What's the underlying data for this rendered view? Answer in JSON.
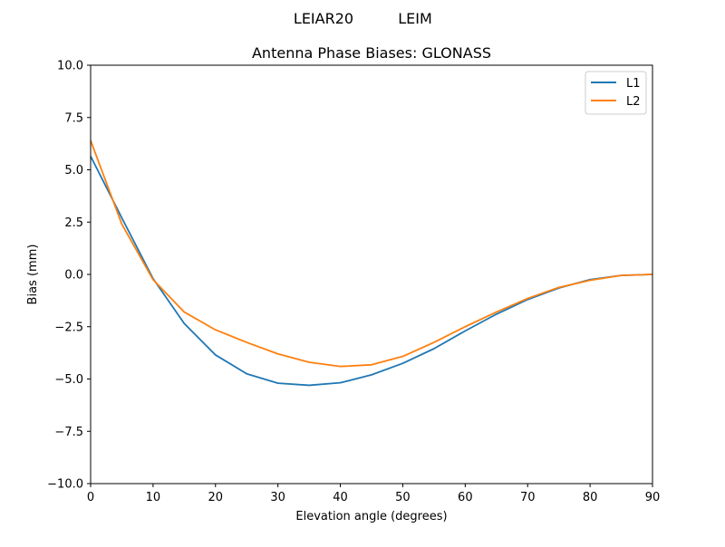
{
  "figure": {
    "suptitle_left": "LEIAR20",
    "suptitle_right": "LEIM"
  },
  "chart_data": {
    "type": "line",
    "title": "Antenna Phase Biases: GLONASS",
    "xlabel": "Elevation angle (degrees)",
    "ylabel": "Bias (mm)",
    "xlim": [
      0,
      90
    ],
    "ylim": [
      -10,
      10
    ],
    "xticks": [
      0,
      10,
      20,
      30,
      40,
      50,
      60,
      70,
      80,
      90
    ],
    "xtick_labels": [
      "0",
      "10",
      "20",
      "30",
      "40",
      "50",
      "60",
      "70",
      "80",
      "90"
    ],
    "yticks": [
      -10,
      -7.5,
      -5,
      -2.5,
      0,
      2.5,
      5,
      7.5,
      10
    ],
    "ytick_labels": [
      "−10.0",
      "−7.5",
      "−5.0",
      "−2.5",
      "0.0",
      "2.5",
      "5.0",
      "7.5",
      "10.0"
    ],
    "grid": false,
    "legend_position": "top-right",
    "x": [
      0,
      5,
      10,
      15,
      20,
      25,
      30,
      35,
      40,
      45,
      50,
      55,
      60,
      65,
      70,
      75,
      80,
      85,
      90
    ],
    "series": [
      {
        "name": "L1",
        "color": "#1f77b4",
        "values": [
          5.65,
          2.7,
          -0.2,
          -2.35,
          -3.85,
          -4.75,
          -5.2,
          -5.3,
          -5.18,
          -4.8,
          -4.25,
          -3.55,
          -2.7,
          -1.9,
          -1.2,
          -0.65,
          -0.25,
          -0.05,
          0.0
        ]
      },
      {
        "name": "L2",
        "color": "#ff7f0e",
        "values": [
          6.4,
          2.4,
          -0.25,
          -1.8,
          -2.65,
          -3.25,
          -3.8,
          -4.2,
          -4.4,
          -4.32,
          -3.92,
          -3.25,
          -2.5,
          -1.8,
          -1.15,
          -0.62,
          -0.28,
          -0.05,
          0.0
        ]
      }
    ]
  }
}
